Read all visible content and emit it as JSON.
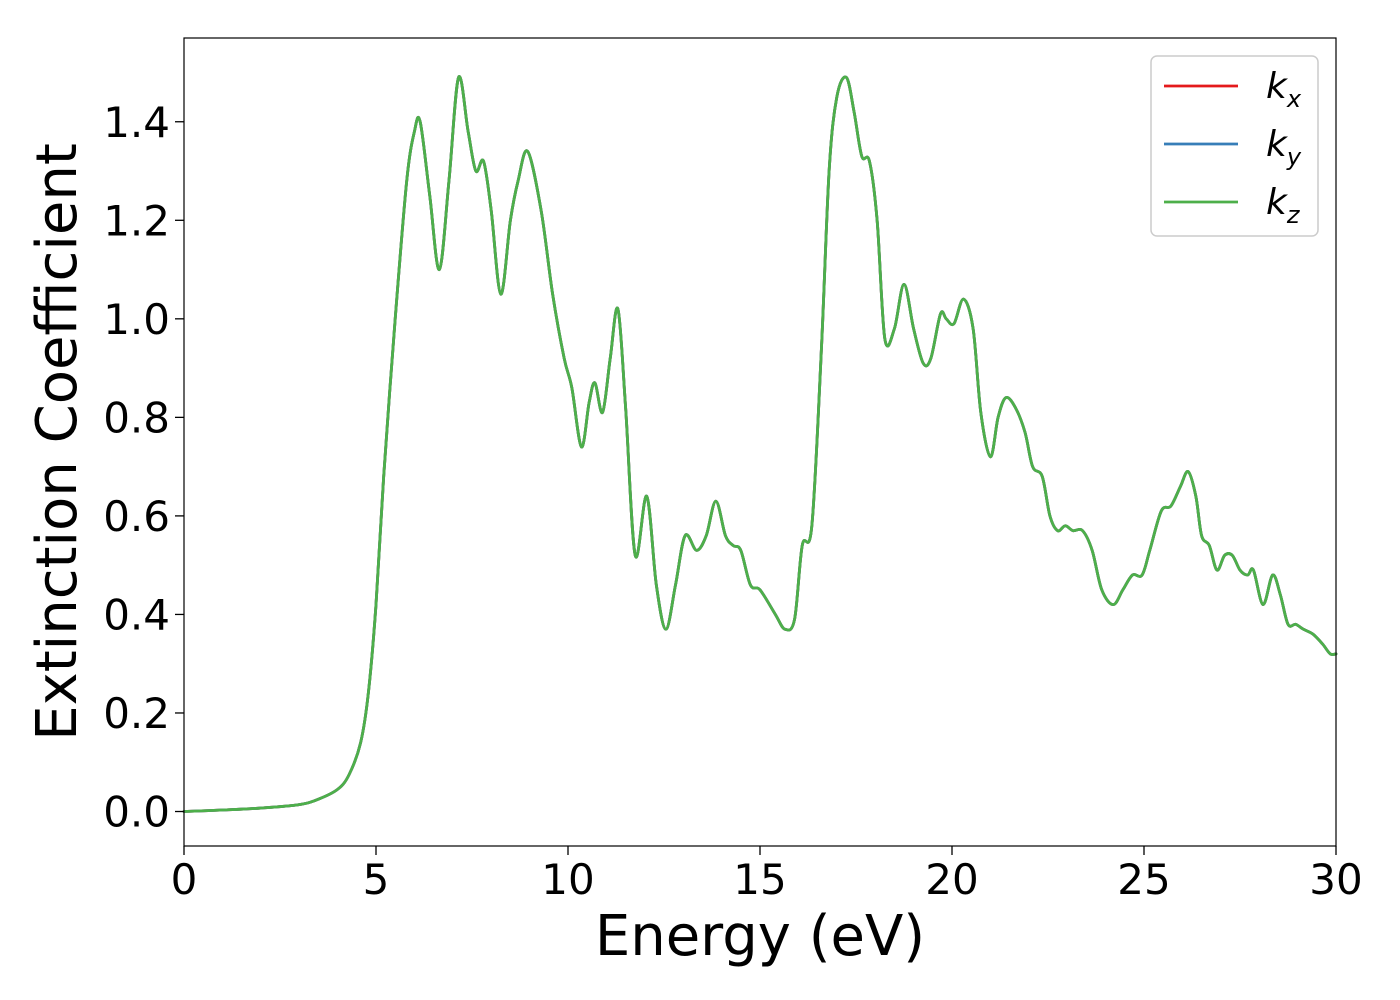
{
  "chart_data": {
    "type": "line",
    "title": "",
    "xlabel": "Energy (eV)",
    "ylabel": "Extinction Coefficient",
    "xlim": [
      0,
      30
    ],
    "ylim": [
      -0.07,
      1.57
    ],
    "xticks": [
      "0",
      "5",
      "10",
      "15",
      "20",
      "25",
      "30"
    ],
    "yticks": [
      "0.0",
      "0.2",
      "0.4",
      "0.6",
      "0.8",
      "1.0",
      "1.2",
      "1.4"
    ],
    "grid": false,
    "legend_position": "top-right",
    "x": [
      0.0,
      1.0,
      2.0,
      3.0,
      3.5,
      4.0,
      4.3,
      4.6,
      4.8,
      5.0,
      5.2,
      5.5,
      5.8,
      6.0,
      6.15,
      6.4,
      6.65,
      6.9,
      7.15,
      7.4,
      7.6,
      7.8,
      8.0,
      8.25,
      8.5,
      8.7,
      8.95,
      9.3,
      9.6,
      9.9,
      10.1,
      10.35,
      10.55,
      10.7,
      10.9,
      11.1,
      11.3,
      11.5,
      11.75,
      12.05,
      12.3,
      12.55,
      12.8,
      13.05,
      13.35,
      13.6,
      13.85,
      14.1,
      14.3,
      14.5,
      14.75,
      15.0,
      15.4,
      15.65,
      15.9,
      16.1,
      16.35,
      16.6,
      16.8,
      17.0,
      17.25,
      17.45,
      17.65,
      17.85,
      18.05,
      18.25,
      18.5,
      18.75,
      19.0,
      19.25,
      19.45,
      19.7,
      19.85,
      20.05,
      20.3,
      20.55,
      20.75,
      21.0,
      21.2,
      21.4,
      21.65,
      21.9,
      22.1,
      22.35,
      22.55,
      22.75,
      22.95,
      23.15,
      23.4,
      23.65,
      23.9,
      24.2,
      24.45,
      24.7,
      24.95,
      25.15,
      25.45,
      25.7,
      25.95,
      26.15,
      26.35,
      26.5,
      26.7,
      26.9,
      27.1,
      27.3,
      27.5,
      27.7,
      27.85,
      28.1,
      28.35,
      28.55,
      28.75,
      28.95,
      29.15,
      29.4,
      29.65,
      29.85,
      30.0
    ],
    "series": [
      {
        "name": "k_x",
        "label_main": "k",
        "label_sub": "x",
        "color": "#e41a1c",
        "values": [
          0.0,
          0.003,
          0.007,
          0.014,
          0.025,
          0.045,
          0.075,
          0.14,
          0.24,
          0.42,
          0.68,
          1.0,
          1.28,
          1.38,
          1.4,
          1.25,
          1.1,
          1.28,
          1.49,
          1.38,
          1.3,
          1.32,
          1.22,
          1.05,
          1.2,
          1.28,
          1.34,
          1.22,
          1.05,
          0.92,
          0.86,
          0.74,
          0.83,
          0.87,
          0.81,
          0.92,
          1.02,
          0.82,
          0.52,
          0.64,
          0.46,
          0.37,
          0.46,
          0.56,
          0.53,
          0.56,
          0.63,
          0.56,
          0.54,
          0.53,
          0.46,
          0.45,
          0.4,
          0.37,
          0.39,
          0.54,
          0.58,
          0.94,
          1.3,
          1.45,
          1.49,
          1.42,
          1.33,
          1.32,
          1.2,
          0.96,
          0.98,
          1.07,
          0.98,
          0.91,
          0.92,
          1.01,
          1.0,
          0.99,
          1.04,
          0.98,
          0.81,
          0.72,
          0.8,
          0.84,
          0.82,
          0.77,
          0.7,
          0.68,
          0.6,
          0.57,
          0.58,
          0.57,
          0.57,
          0.53,
          0.45,
          0.42,
          0.45,
          0.48,
          0.48,
          0.53,
          0.61,
          0.62,
          0.66,
          0.69,
          0.64,
          0.56,
          0.54,
          0.49,
          0.52,
          0.52,
          0.49,
          0.48,
          0.49,
          0.42,
          0.48,
          0.44,
          0.38,
          0.38,
          0.37,
          0.36,
          0.34,
          0.32,
          0.32
        ]
      },
      {
        "name": "k_y",
        "label_main": "k",
        "label_sub": "y",
        "color": "#377eb8",
        "values": [
          0.0,
          0.003,
          0.007,
          0.014,
          0.025,
          0.045,
          0.075,
          0.14,
          0.24,
          0.42,
          0.68,
          1.0,
          1.28,
          1.38,
          1.4,
          1.25,
          1.1,
          1.28,
          1.49,
          1.38,
          1.3,
          1.32,
          1.22,
          1.05,
          1.2,
          1.28,
          1.34,
          1.22,
          1.05,
          0.92,
          0.86,
          0.74,
          0.83,
          0.87,
          0.81,
          0.92,
          1.02,
          0.82,
          0.52,
          0.64,
          0.46,
          0.37,
          0.46,
          0.56,
          0.53,
          0.56,
          0.63,
          0.56,
          0.54,
          0.53,
          0.46,
          0.45,
          0.4,
          0.37,
          0.39,
          0.54,
          0.58,
          0.94,
          1.3,
          1.45,
          1.49,
          1.42,
          1.33,
          1.32,
          1.2,
          0.96,
          0.98,
          1.07,
          0.98,
          0.91,
          0.92,
          1.01,
          1.0,
          0.99,
          1.04,
          0.98,
          0.81,
          0.72,
          0.8,
          0.84,
          0.82,
          0.77,
          0.7,
          0.68,
          0.6,
          0.57,
          0.58,
          0.57,
          0.57,
          0.53,
          0.45,
          0.42,
          0.45,
          0.48,
          0.48,
          0.53,
          0.61,
          0.62,
          0.66,
          0.69,
          0.64,
          0.56,
          0.54,
          0.49,
          0.52,
          0.52,
          0.49,
          0.48,
          0.49,
          0.42,
          0.48,
          0.44,
          0.38,
          0.38,
          0.37,
          0.36,
          0.34,
          0.32,
          0.32
        ]
      },
      {
        "name": "k_z",
        "label_main": "k",
        "label_sub": "z",
        "color": "#4daf4a",
        "values": [
          0.0,
          0.003,
          0.007,
          0.014,
          0.025,
          0.045,
          0.075,
          0.14,
          0.24,
          0.42,
          0.68,
          1.0,
          1.28,
          1.38,
          1.4,
          1.25,
          1.1,
          1.28,
          1.49,
          1.38,
          1.3,
          1.32,
          1.22,
          1.05,
          1.2,
          1.28,
          1.34,
          1.22,
          1.05,
          0.92,
          0.86,
          0.74,
          0.83,
          0.87,
          0.81,
          0.92,
          1.02,
          0.82,
          0.52,
          0.64,
          0.46,
          0.37,
          0.46,
          0.56,
          0.53,
          0.56,
          0.63,
          0.56,
          0.54,
          0.53,
          0.46,
          0.45,
          0.4,
          0.37,
          0.39,
          0.54,
          0.58,
          0.94,
          1.3,
          1.45,
          1.49,
          1.42,
          1.33,
          1.32,
          1.2,
          0.96,
          0.98,
          1.07,
          0.98,
          0.91,
          0.92,
          1.01,
          1.0,
          0.99,
          1.04,
          0.98,
          0.81,
          0.72,
          0.8,
          0.84,
          0.82,
          0.77,
          0.7,
          0.68,
          0.6,
          0.57,
          0.58,
          0.57,
          0.57,
          0.53,
          0.45,
          0.42,
          0.45,
          0.48,
          0.48,
          0.53,
          0.61,
          0.62,
          0.66,
          0.69,
          0.64,
          0.56,
          0.54,
          0.49,
          0.52,
          0.52,
          0.49,
          0.48,
          0.49,
          0.42,
          0.48,
          0.44,
          0.38,
          0.38,
          0.37,
          0.36,
          0.34,
          0.32,
          0.32
        ]
      }
    ]
  }
}
